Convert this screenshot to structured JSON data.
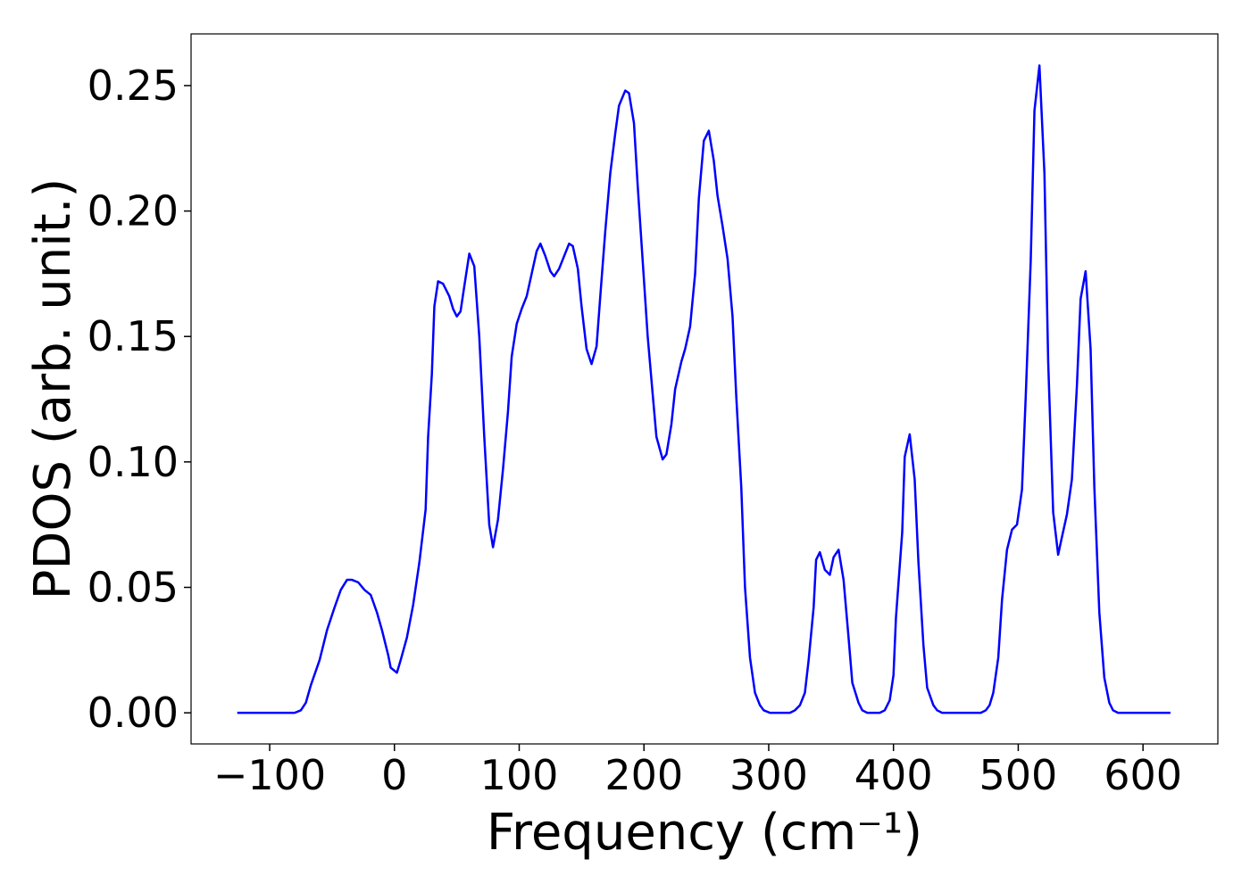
{
  "chart_data": {
    "type": "line",
    "xlabel": "Frequency (cm⁻¹)",
    "ylabel": "PDOS (arb. unit.)",
    "xlim": [
      -163,
      660
    ],
    "ylim": [
      -0.0124,
      0.2706
    ],
    "xticks": [
      {
        "value": -100,
        "label": "−100"
      },
      0,
      100,
      200,
      300,
      400,
      500,
      600
    ],
    "yticks": [
      {
        "value": 0,
        "label": "0.00"
      },
      {
        "value": 0.05,
        "label": "0.05"
      },
      {
        "value": 0.1,
        "label": "0.10"
      },
      {
        "value": 0.15,
        "label": "0.15"
      },
      {
        "value": 0.2,
        "label": "0.20"
      },
      {
        "value": 0.25,
        "label": "0.25"
      }
    ],
    "series": [
      {
        "color": "#0000ff",
        "x": [
          -126,
          -80,
          -75,
          -71,
          -67,
          -60,
          -54,
          -48,
          -43,
          -38,
          -34,
          -29,
          -24,
          -19,
          -14,
          -10,
          -5,
          -3,
          2,
          5,
          10,
          15,
          20,
          25,
          27,
          30,
          32,
          35,
          39,
          44,
          47,
          50,
          53,
          56,
          60,
          64,
          68,
          72,
          76,
          79,
          83,
          87,
          91,
          94,
          98,
          102,
          106,
          110,
          114,
          117,
          121,
          125,
          128,
          132,
          136,
          140,
          143,
          147,
          150,
          154,
          158,
          162,
          165,
          169,
          173,
          177,
          180,
          185,
          188,
          192,
          195,
          199,
          203,
          207,
          210,
          215,
          218,
          222,
          225,
          230,
          233,
          237,
          241,
          244,
          248,
          252,
          256,
          259,
          263,
          267,
          271,
          274,
          278,
          281,
          285,
          289,
          293,
          296,
          301,
          317,
          321,
          325,
          329,
          332,
          336,
          338,
          341,
          345,
          349,
          352,
          356,
          360,
          364,
          367,
          372,
          375,
          379,
          389,
          393,
          397,
          400,
          402,
          407,
          409,
          413,
          417,
          420,
          424,
          427,
          432,
          435,
          439,
          470,
          474,
          477,
          480,
          484,
          487,
          491,
          495,
          499,
          503,
          506,
          510,
          513,
          517,
          521,
          524,
          528,
          532,
          535,
          539,
          543,
          547,
          550,
          554,
          558,
          561,
          565,
          569,
          573,
          576,
          580,
          622
        ],
        "values": [
          0,
          0,
          0.001,
          0.004,
          0.011,
          0.021,
          0.033,
          0.042,
          0.049,
          0.053,
          0.053,
          0.052,
          0.049,
          0.047,
          0.04,
          0.033,
          0.023,
          0.018,
          0.016,
          0.021,
          0.03,
          0.043,
          0.06,
          0.081,
          0.11,
          0.135,
          0.162,
          0.172,
          0.171,
          0.166,
          0.161,
          0.158,
          0.16,
          0.17,
          0.183,
          0.178,
          0.15,
          0.11,
          0.075,
          0.066,
          0.077,
          0.097,
          0.12,
          0.142,
          0.155,
          0.161,
          0.166,
          0.175,
          0.184,
          0.187,
          0.182,
          0.176,
          0.174,
          0.177,
          0.182,
          0.187,
          0.186,
          0.177,
          0.162,
          0.145,
          0.139,
          0.146,
          0.166,
          0.192,
          0.215,
          0.231,
          0.242,
          0.248,
          0.247,
          0.235,
          0.21,
          0.18,
          0.15,
          0.127,
          0.11,
          0.101,
          0.103,
          0.115,
          0.129,
          0.14,
          0.145,
          0.154,
          0.175,
          0.205,
          0.228,
          0.232,
          0.22,
          0.206,
          0.194,
          0.181,
          0.158,
          0.126,
          0.09,
          0.05,
          0.022,
          0.008,
          0.003,
          0.001,
          0,
          0,
          0.001,
          0.003,
          0.008,
          0.021,
          0.042,
          0.061,
          0.064,
          0.057,
          0.055,
          0.062,
          0.065,
          0.053,
          0.03,
          0.012,
          0.004,
          0.001,
          0,
          0,
          0.001,
          0.005,
          0.015,
          0.038,
          0.072,
          0.102,
          0.111,
          0.093,
          0.06,
          0.027,
          0.01,
          0.003,
          0.001,
          0,
          0,
          0.001,
          0.003,
          0.008,
          0.022,
          0.045,
          0.065,
          0.073,
          0.075,
          0.089,
          0.126,
          0.18,
          0.24,
          0.258,
          0.215,
          0.14,
          0.08,
          0.063,
          0.07,
          0.079,
          0.093,
          0.13,
          0.165,
          0.176,
          0.145,
          0.09,
          0.04,
          0.014,
          0.004,
          0.001,
          0,
          0
        ]
      }
    ]
  }
}
